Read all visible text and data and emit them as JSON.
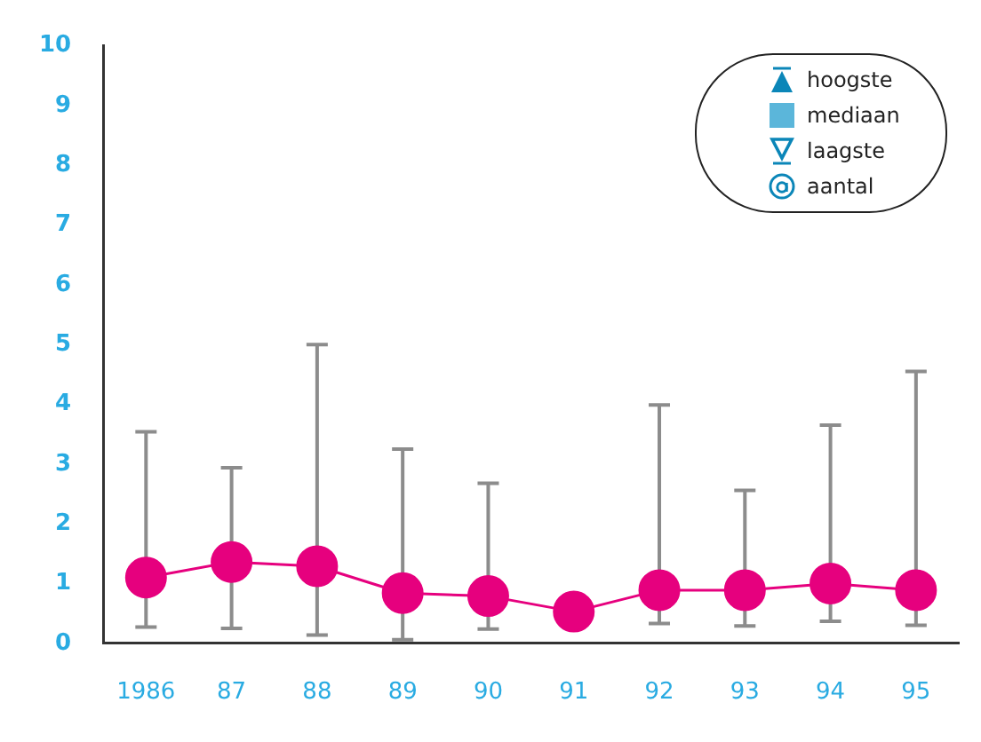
{
  "chart_data": {
    "type": "line",
    "categories": [
      "1986",
      "87",
      "88",
      "89",
      "90",
      "91",
      "92",
      "93",
      "94",
      "95"
    ],
    "series": [
      {
        "color": "#e6007e",
        "values": [
          1.1,
          1.36,
          1.29,
          0.84,
          0.79,
          0.53,
          0.89,
          0.89,
          1.0,
          0.89
        ],
        "errors": [
          [
            0.27,
            3.54
          ],
          [
            0.25,
            2.94
          ],
          [
            0.14,
            5.0
          ],
          [
            0.06,
            3.25
          ],
          [
            0.24,
            2.68
          ],
          null,
          [
            0.33,
            3.99
          ],
          [
            0.29,
            2.56
          ],
          [
            0.37,
            3.65
          ],
          [
            0.3,
            4.55
          ]
        ]
      }
    ],
    "ylim": [
      0,
      10
    ],
    "yticks": [
      0,
      1,
      2,
      3,
      4,
      5,
      6,
      7,
      8,
      9,
      10
    ],
    "grid": false,
    "marker": "circle",
    "line_style": "solid",
    "annotations": [
      "hoogste",
      "mediaan",
      "laagste",
      "aantal"
    ]
  }
}
